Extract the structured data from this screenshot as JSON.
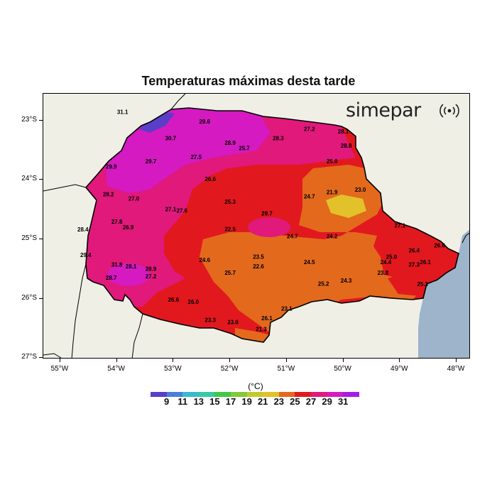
{
  "title": "Temperaturas máximas desta tarde",
  "logo": {
    "text": "simepar",
    "icon": "radar-waves-icon"
  },
  "map": {
    "lat_labels": [
      "23°S",
      "24°S",
      "25°S",
      "26°S",
      "27°S"
    ],
    "lat_values": [
      -23,
      -24,
      -25,
      -26,
      -27
    ],
    "lon_labels": [
      "55°W",
      "54°W",
      "53°W",
      "52°W",
      "51°W",
      "50°W",
      "49°W",
      "48°W"
    ],
    "lon_values": [
      -55,
      -54,
      -53,
      -52,
      -51,
      -50,
      -49,
      -48
    ],
    "lon_range": [
      -55.3,
      -47.75
    ],
    "lat_range": [
      -22.55,
      -27.02
    ],
    "colors": {
      "land": "#efefe6",
      "ocean": "#9db4cb",
      "border": "#000000"
    }
  },
  "colorbar": {
    "unit": "(°C)",
    "colors": [
      "#5a3ec8",
      "#4a7fd6",
      "#3ab8d0",
      "#35c9a8",
      "#3fc84a",
      "#83c93a",
      "#c6c92e",
      "#e3c12a",
      "#e3691d",
      "#e2181f",
      "#e0197b",
      "#d41ac0",
      "#a41ce6"
    ],
    "labels": [
      "9",
      "11",
      "13",
      "15",
      "17",
      "19",
      "21",
      "23",
      "25",
      "27",
      "29",
      "31"
    ]
  },
  "stations": [
    {
      "v": "31.1",
      "lon": -53.9,
      "lat": -22.89
    },
    {
      "v": "29.6",
      "lon": -52.45,
      "lat": -23.05
    },
    {
      "v": "30.7",
      "lon": -53.05,
      "lat": -23.33
    },
    {
      "v": "28.9",
      "lon": -52.0,
      "lat": -23.41
    },
    {
      "v": "28.3",
      "lon": -51.15,
      "lat": -23.33
    },
    {
      "v": "27.2",
      "lon": -50.6,
      "lat": -23.18
    },
    {
      "v": "28.1",
      "lon": -50.0,
      "lat": -23.22
    },
    {
      "v": "28.8",
      "lon": -49.95,
      "lat": -23.46
    },
    {
      "v": "25.7",
      "lon": -51.75,
      "lat": -23.5
    },
    {
      "v": "27.5",
      "lon": -52.6,
      "lat": -23.65
    },
    {
      "v": "29.7",
      "lon": -53.4,
      "lat": -23.72
    },
    {
      "v": "29.9",
      "lon": -54.1,
      "lat": -23.81
    },
    {
      "v": "25.0",
      "lon": -50.2,
      "lat": -23.72
    },
    {
      "v": "26.6",
      "lon": -52.35,
      "lat": -24.02
    },
    {
      "v": "21.9",
      "lon": -50.2,
      "lat": -24.24
    },
    {
      "v": "23.0",
      "lon": -49.7,
      "lat": -24.2
    },
    {
      "v": "28.2",
      "lon": -54.15,
      "lat": -24.28
    },
    {
      "v": "27.0",
      "lon": -53.7,
      "lat": -24.35
    },
    {
      "v": "24.7",
      "lon": -50.6,
      "lat": -24.31
    },
    {
      "v": "25.3",
      "lon": -52.0,
      "lat": -24.4
    },
    {
      "v": "27.1",
      "lon": -53.05,
      "lat": -24.53
    },
    {
      "v": "27.6",
      "lon": -52.85,
      "lat": -24.55
    },
    {
      "v": "29.7",
      "lon": -51.35,
      "lat": -24.6
    },
    {
      "v": "27.8",
      "lon": -54.0,
      "lat": -24.74
    },
    {
      "v": "26.9",
      "lon": -53.8,
      "lat": -24.83
    },
    {
      "v": "28.4",
      "lon": -54.6,
      "lat": -24.87
    },
    {
      "v": "22.5",
      "lon": -52.0,
      "lat": -24.86
    },
    {
      "v": "27.1",
      "lon": -49.0,
      "lat": -24.8
    },
    {
      "v": "24.7",
      "lon": -50.9,
      "lat": -24.98
    },
    {
      "v": "24.2",
      "lon": -50.2,
      "lat": -24.98
    },
    {
      "v": "26.4",
      "lon": -48.75,
      "lat": -25.22
    },
    {
      "v": "26.6",
      "lon": -48.3,
      "lat": -25.14
    },
    {
      "v": "29.4",
      "lon": -54.55,
      "lat": -25.3
    },
    {
      "v": "23.5",
      "lon": -51.5,
      "lat": -25.33
    },
    {
      "v": "25.0",
      "lon": -49.15,
      "lat": -25.33
    },
    {
      "v": "24.6",
      "lon": -52.45,
      "lat": -25.38
    },
    {
      "v": "24.5",
      "lon": -50.6,
      "lat": -25.42
    },
    {
      "v": "24.4",
      "lon": -49.25,
      "lat": -25.42
    },
    {
      "v": "26.1",
      "lon": -48.55,
      "lat": -25.42
    },
    {
      "v": "27.3",
      "lon": -48.75,
      "lat": -25.46
    },
    {
      "v": "31.8",
      "lon": -54.0,
      "lat": -25.46
    },
    {
      "v": "28.1",
      "lon": -53.75,
      "lat": -25.49
    },
    {
      "v": "22.6",
      "lon": -51.5,
      "lat": -25.49
    },
    {
      "v": "28.9",
      "lon": -53.4,
      "lat": -25.53
    },
    {
      "v": "25.7",
      "lon": -52.0,
      "lat": -25.6
    },
    {
      "v": "23.8",
      "lon": -49.3,
      "lat": -25.6
    },
    {
      "v": "28.7",
      "lon": -54.1,
      "lat": -25.68
    },
    {
      "v": "27.2",
      "lon": -53.4,
      "lat": -25.66
    },
    {
      "v": "24.3",
      "lon": -49.95,
      "lat": -25.73
    },
    {
      "v": "25.2",
      "lon": -50.35,
      "lat": -25.78
    },
    {
      "v": "25.3",
      "lon": -48.6,
      "lat": -25.79
    },
    {
      "v": "26.6",
      "lon": -53.0,
      "lat": -26.05
    },
    {
      "v": "26.0",
      "lon": -52.65,
      "lat": -26.09
    },
    {
      "v": "23.1",
      "lon": -51.0,
      "lat": -26.2
    },
    {
      "v": "23.3",
      "lon": -52.35,
      "lat": -26.39
    },
    {
      "v": "23.0",
      "lon": -51.95,
      "lat": -26.43
    },
    {
      "v": "26.1",
      "lon": -51.35,
      "lat": -26.36
    },
    {
      "v": "21.3",
      "lon": -51.45,
      "lat": -26.55
    }
  ]
}
